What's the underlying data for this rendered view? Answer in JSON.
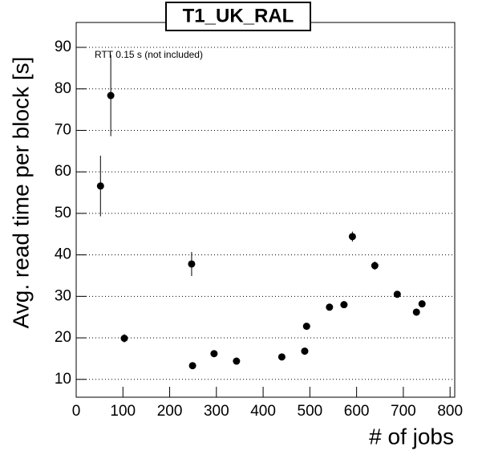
{
  "chart_data": {
    "type": "scatter",
    "title": "T1_UK_RAL",
    "x_label": "# of jobs",
    "y_label": "Avg. read time per block [s]",
    "annotation": "RTT 0.15 s (not included)",
    "x": [
      52,
      74,
      103,
      247,
      249,
      295,
      343,
      440,
      489,
      493,
      542,
      573,
      591,
      639,
      687,
      728,
      740
    ],
    "values": [
      56.6,
      78.4,
      19.9,
      37.8,
      13.3,
      16.2,
      14.4,
      15.4,
      16.8,
      22.8,
      27.4,
      28.0,
      44.4,
      37.4,
      30.5,
      26.2,
      28.2
    ],
    "errors": [
      7.3,
      9.8,
      1.0,
      2.9,
      0.5,
      0.5,
      0.5,
      0.5,
      0.5,
      0.8,
      0.5,
      0.5,
      1.2,
      1.0,
      0.5,
      0.5,
      0.5
    ],
    "color": "#000000",
    "xlim": [
      0,
      810
    ],
    "xticks": [
      0,
      100,
      200,
      300,
      400,
      500,
      600,
      700,
      800
    ],
    "ylim": [
      5.7,
      96
    ],
    "yticks": [
      10,
      20,
      30,
      40,
      50,
      60,
      70,
      80,
      90
    ],
    "grid": true
  }
}
